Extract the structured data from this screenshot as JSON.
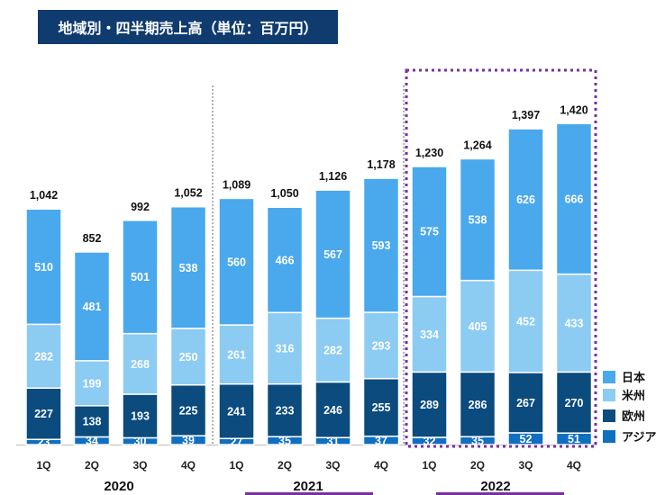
{
  "title": "地域別・四半期売上高（単位：百万円）",
  "colors": {
    "title_bg": "#0f3b6e",
    "japan": "#4aa8ec",
    "americas": "#8ccbf2",
    "europe": "#0b4b7d",
    "asia": "#0f6fc0",
    "highlight_2022": "#7b2f9e"
  },
  "chart_data": {
    "type": "bar",
    "stacked": true,
    "categories": [
      "1Q",
      "2Q",
      "3Q",
      "4Q",
      "1Q",
      "2Q",
      "3Q",
      "4Q",
      "1Q",
      "2Q",
      "3Q",
      "4Q"
    ],
    "years": [
      "2020",
      "2021",
      "2022"
    ],
    "series": [
      {
        "name": "アジア",
        "values": [
          23,
          34,
          30,
          39,
          27,
          35,
          31,
          37,
          32,
          35,
          52,
          51
        ]
      },
      {
        "name": "欧州",
        "values": [
          227,
          138,
          193,
          225,
          241,
          233,
          246,
          255,
          289,
          286,
          267,
          270
        ]
      },
      {
        "name": "米州",
        "values": [
          282,
          199,
          268,
          250,
          261,
          316,
          282,
          293,
          334,
          405,
          452,
          433
        ]
      },
      {
        "name": "日本",
        "values": [
          510,
          481,
          501,
          538,
          560,
          466,
          567,
          593,
          575,
          538,
          626,
          666
        ]
      }
    ],
    "totals": [
      "1,042",
      "852",
      "992",
      "1,052",
      "1,089",
      "1,050",
      "1,126",
      "1,178",
      "1,230",
      "1,264",
      "1,397",
      "1,420"
    ],
    "legend": [
      "日本",
      "米州",
      "欧州",
      "アジア"
    ],
    "legend_position": "bottom-right",
    "grid": false,
    "ylim": [
      0,
      1500
    ]
  }
}
